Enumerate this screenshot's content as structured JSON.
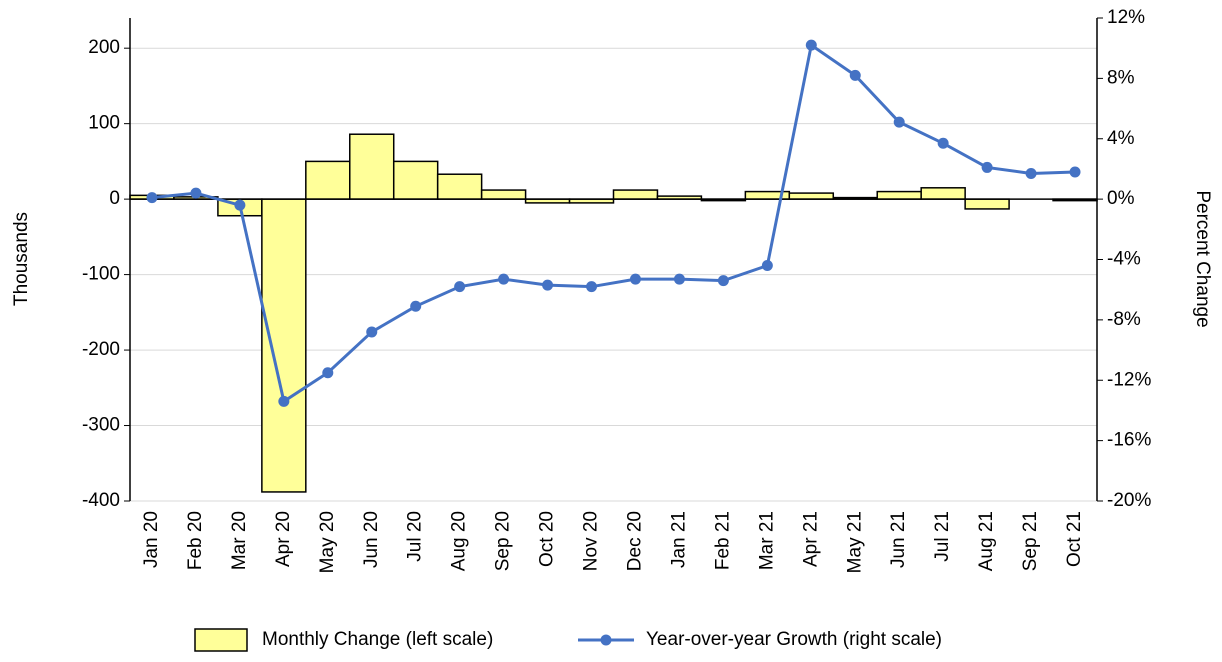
{
  "chart_data": {
    "type": "bar_line",
    "categories": [
      "Jan 20",
      "Feb 20",
      "Mar 20",
      "Apr 20",
      "May 20",
      "Jun 20",
      "Jul 20",
      "Aug 20",
      "Sep 20",
      "Oct 20",
      "Nov 20",
      "Dec 20",
      "Jan 21",
      "Feb 21",
      "Mar 21",
      "Apr 21",
      "May 21",
      "Jun 21",
      "Jul 21",
      "Aug 21",
      "Sep 21",
      "Oct 21"
    ],
    "series": [
      {
        "name": "Monthly Change (left scale)",
        "type": "bar",
        "color": "#ffff99",
        "values": [
          5,
          3,
          -22,
          -388,
          50,
          86,
          50,
          33,
          12,
          -5,
          -5,
          12,
          4,
          -2,
          10,
          8,
          2,
          10,
          15,
          -13,
          0,
          -2
        ]
      },
      {
        "name": "Year-over-year Growth (right scale)",
        "type": "line",
        "axis": "y2",
        "color": "#4472c4",
        "values": [
          0.1,
          0.4,
          -0.4,
          -13.4,
          -11.5,
          -8.8,
          -7.1,
          -5.8,
          -5.3,
          -5.7,
          -5.8,
          -5.3,
          -5.3,
          -5.4,
          -4.4,
          10.2,
          8.2,
          5.1,
          3.7,
          2.1,
          1.7,
          1.8
        ]
      }
    ],
    "ylabel": "Thousands",
    "y2label": "Percent Change",
    "ylim": [
      -400,
      240
    ],
    "yticks": [
      -400,
      -300,
      -200,
      -100,
      0,
      100,
      200
    ],
    "y2lim": [
      -20,
      12
    ],
    "y2ticks": [
      {
        "value": -20,
        "label": "-20%"
      },
      {
        "value": -16,
        "label": "-16%"
      },
      {
        "value": -12,
        "label": "-12%"
      },
      {
        "value": -8,
        "label": "-8%"
      },
      {
        "value": -4,
        "label": "-4%"
      },
      {
        "value": 0,
        "label": "0%"
      },
      {
        "value": 4,
        "label": "4%"
      },
      {
        "value": 8,
        "label": "8%"
      },
      {
        "value": 12,
        "label": "12%"
      }
    ],
    "grid": true,
    "legend": "bottom"
  }
}
